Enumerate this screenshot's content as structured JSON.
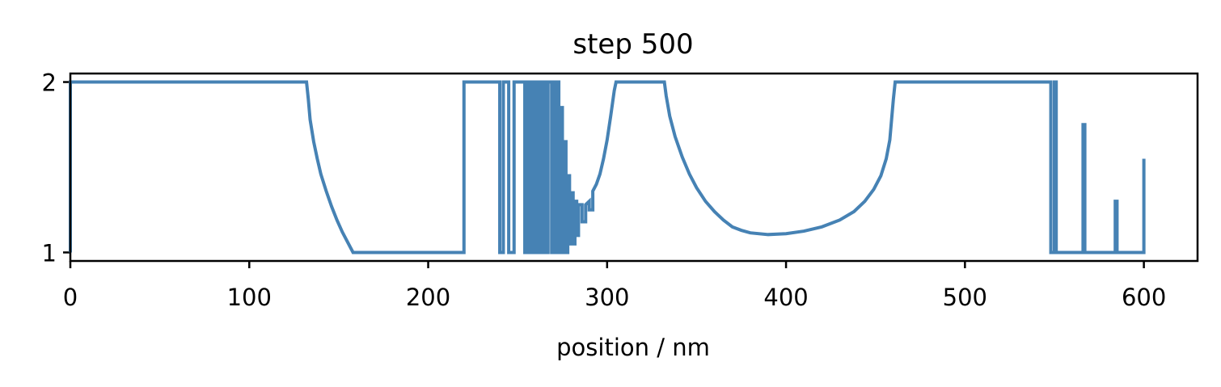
{
  "chart_data": {
    "type": "line",
    "title": "step 500",
    "xlabel": "position / nm",
    "ylabel": "",
    "xlim": [
      0,
      630
    ],
    "ylim": [
      0.95,
      2.05
    ],
    "xticks": [
      0,
      100,
      200,
      300,
      400,
      500,
      600
    ],
    "yticks": [
      1,
      2
    ],
    "grid": false,
    "legend": "none",
    "line_color": "#4682b4",
    "series": [
      {
        "values": [
          [
            0,
            1.0
          ],
          [
            0,
            2.0
          ],
          [
            132,
            2.0
          ],
          [
            133,
            1.9
          ],
          [
            134,
            1.78
          ],
          [
            136,
            1.65
          ],
          [
            138,
            1.55
          ],
          [
            140,
            1.46
          ],
          [
            143,
            1.36
          ],
          [
            146,
            1.27
          ],
          [
            149,
            1.19
          ],
          [
            152,
            1.12
          ],
          [
            155,
            1.06
          ],
          [
            158,
            1.0
          ],
          [
            220,
            1.0
          ],
          [
            220,
            2.0
          ],
          [
            240,
            2.0
          ],
          [
            240,
            1.0
          ],
          [
            242,
            1.0
          ],
          [
            242,
            2.0
          ],
          [
            245,
            2.0
          ],
          [
            245,
            1.0
          ],
          [
            248,
            1.0
          ],
          [
            248,
            2.0
          ],
          [
            254,
            2.0
          ],
          [
            254,
            1.0
          ],
          [
            255,
            1.0
          ],
          [
            255,
            2.0
          ],
          [
            256,
            2.0
          ],
          [
            256,
            1.0
          ],
          [
            257,
            1.0
          ],
          [
            257,
            2.0
          ],
          [
            258,
            2.0
          ],
          [
            258,
            1.0
          ],
          [
            259,
            1.0
          ],
          [
            259,
            2.0
          ],
          [
            260,
            2.0
          ],
          [
            260,
            1.0
          ],
          [
            261,
            1.0
          ],
          [
            261,
            2.0
          ],
          [
            262,
            2.0
          ],
          [
            262,
            1.0
          ],
          [
            263,
            1.0
          ],
          [
            263,
            2.0
          ],
          [
            264,
            2.0
          ],
          [
            264,
            1.0
          ],
          [
            265,
            1.0
          ],
          [
            265,
            2.0
          ],
          [
            266,
            2.0
          ],
          [
            266,
            1.0
          ],
          [
            267,
            1.0
          ],
          [
            267,
            2.0
          ],
          [
            269,
            2.0
          ],
          [
            269,
            1.0
          ],
          [
            270,
            1.0
          ],
          [
            270,
            2.0
          ],
          [
            271,
            2.0
          ],
          [
            271,
            1.0
          ],
          [
            272,
            1.0
          ],
          [
            272,
            2.0
          ],
          [
            273,
            2.0
          ],
          [
            273,
            1.0
          ],
          [
            274,
            1.0
          ],
          [
            274,
            1.85
          ],
          [
            275,
            1.85
          ],
          [
            275,
            1.0
          ],
          [
            276,
            1.0
          ],
          [
            276,
            1.65
          ],
          [
            277,
            1.65
          ],
          [
            277,
            1.0
          ],
          [
            278,
            1.0
          ],
          [
            278,
            1.45
          ],
          [
            279,
            1.45
          ],
          [
            279,
            1.05
          ],
          [
            280,
            1.05
          ],
          [
            280,
            1.35
          ],
          [
            281,
            1.35
          ],
          [
            281,
            1.05
          ],
          [
            282,
            1.05
          ],
          [
            282,
            1.3
          ],
          [
            283,
            1.3
          ],
          [
            283,
            1.1
          ],
          [
            284,
            1.1
          ],
          [
            284,
            1.28
          ],
          [
            286,
            1.28
          ],
          [
            286,
            1.18
          ],
          [
            288,
            1.18
          ],
          [
            288,
            1.28
          ],
          [
            290,
            1.3
          ],
          [
            290,
            1.25
          ],
          [
            292,
            1.25
          ],
          [
            292,
            1.36
          ],
          [
            294,
            1.4
          ],
          [
            296,
            1.46
          ],
          [
            298,
            1.55
          ],
          [
            300,
            1.66
          ],
          [
            302,
            1.8
          ],
          [
            304,
            1.95
          ],
          [
            305,
            2.0
          ],
          [
            332,
            2.0
          ],
          [
            333,
            1.92
          ],
          [
            335,
            1.8
          ],
          [
            338,
            1.68
          ],
          [
            342,
            1.56
          ],
          [
            346,
            1.46
          ],
          [
            350,
            1.38
          ],
          [
            355,
            1.3
          ],
          [
            360,
            1.24
          ],
          [
            365,
            1.19
          ],
          [
            370,
            1.15
          ],
          [
            375,
            1.13
          ],
          [
            380,
            1.115
          ],
          [
            390,
            1.105
          ],
          [
            400,
            1.11
          ],
          [
            410,
            1.125
          ],
          [
            420,
            1.15
          ],
          [
            430,
            1.19
          ],
          [
            438,
            1.24
          ],
          [
            444,
            1.3
          ],
          [
            449,
            1.37
          ],
          [
            453,
            1.45
          ],
          [
            456,
            1.55
          ],
          [
            458,
            1.66
          ],
          [
            459,
            1.78
          ],
          [
            460,
            1.9
          ],
          [
            461,
            2.0
          ],
          [
            548,
            2.0
          ],
          [
            548,
            1.0
          ],
          [
            550,
            1.0
          ],
          [
            550,
            2.0
          ],
          [
            551,
            2.0
          ],
          [
            551,
            1.0
          ],
          [
            566,
            1.0
          ],
          [
            566,
            1.75
          ],
          [
            567,
            1.75
          ],
          [
            567,
            1.0
          ],
          [
            584,
            1.0
          ],
          [
            584,
            1.3
          ],
          [
            585,
            1.3
          ],
          [
            585,
            1.0
          ],
          [
            600,
            1.0
          ],
          [
            600,
            1.55
          ]
        ]
      }
    ]
  }
}
